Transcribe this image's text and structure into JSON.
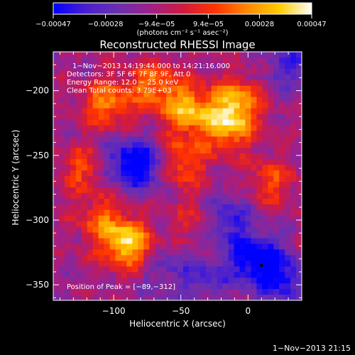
{
  "chart_data": {
    "type": "heatmap",
    "title": "Reconstructed RHESSI Image",
    "xlabel": "Heliocentric X (arcsec)",
    "ylabel": "Heliocentric Y (arcsec)",
    "xlim": [
      -145,
      40
    ],
    "ylim": [
      -362,
      -170
    ],
    "x_ticks": [
      -100,
      -50,
      0
    ],
    "x_tick_labels": [
      "−100",
      "−50",
      "0"
    ],
    "y_ticks": [
      -200,
      -250,
      -300,
      -350
    ],
    "y_tick_labels": [
      "−200",
      "−250",
      "−300",
      "−350"
    ],
    "colorbar": {
      "range": [
        -0.00047,
        0.00047
      ],
      "tick_values": [
        -0.00047,
        -0.00028,
        -9.4e-05,
        9.4e-05,
        0.00028,
        0.00047
      ],
      "tick_labels": [
        "−0.00047",
        "−0.00028",
        "−9.4e−05",
        "9.4e−05",
        "0.00028",
        "0.00047"
      ],
      "unit_label": "(photons cm⁻² s⁻¹ asec⁻²)",
      "colors": [
        "#0000ff",
        "#4a1fd0",
        "#6a2fb0",
        "#a0208a",
        "#d01a40",
        "#ff3300",
        "#ff8800",
        "#ffcc00",
        "#ffffff"
      ]
    },
    "annotations": [
      "1−Nov−2013 14:19:44.000 to 14:21:16.000",
      "Detectors: 3F 5F 6F 7F 8F 9F, Att 0",
      "Energy Range: 12.0 − 25.0 keV",
      "Clean     Total counts: 3.79E+03"
    ],
    "peak_label": "Position of Peak = [−89,−312]",
    "peak": [
      -89,
      -312
    ],
    "bright_sources": [
      {
        "x": -90,
        "y": -318,
        "value": 0.00047
      },
      {
        "x": -45,
        "y": -215,
        "value": 0.0004
      },
      {
        "x": -15,
        "y": -228,
        "value": 0.00036
      },
      {
        "x": -8,
        "y": -208,
        "value": 0.00034
      },
      {
        "x": -70,
        "y": -195,
        "value": 0.00028
      },
      {
        "x": -105,
        "y": -210,
        "value": 0.0003
      },
      {
        "x": -50,
        "y": -255,
        "value": 0.0003
      },
      {
        "x": -122,
        "y": -260,
        "value": 0.00022
      },
      {
        "x": -110,
        "y": -300,
        "value": 0.0002
      },
      {
        "x": 18,
        "y": -270,
        "value": 0.0002
      },
      {
        "x": -40,
        "y": -300,
        "value": 0.0001
      }
    ],
    "dark_regions": [
      {
        "x": -75,
        "y": -258,
        "value": -0.00035
      },
      {
        "x": -95,
        "y": -255,
        "value": -0.0003
      },
      {
        "x": 5,
        "y": -330,
        "value": -0.00045
      },
      {
        "x": 25,
        "y": -345,
        "value": -0.00035
      },
      {
        "x": -15,
        "y": -300,
        "value": -0.0003
      },
      {
        "x": 30,
        "y": -180,
        "value": -0.00025
      },
      {
        "x": -30,
        "y": -345,
        "value": -0.00022
      },
      {
        "x": -60,
        "y": -340,
        "value": -0.00018
      }
    ]
  },
  "footer": {
    "date": "1−Nov−2013 21:15"
  }
}
